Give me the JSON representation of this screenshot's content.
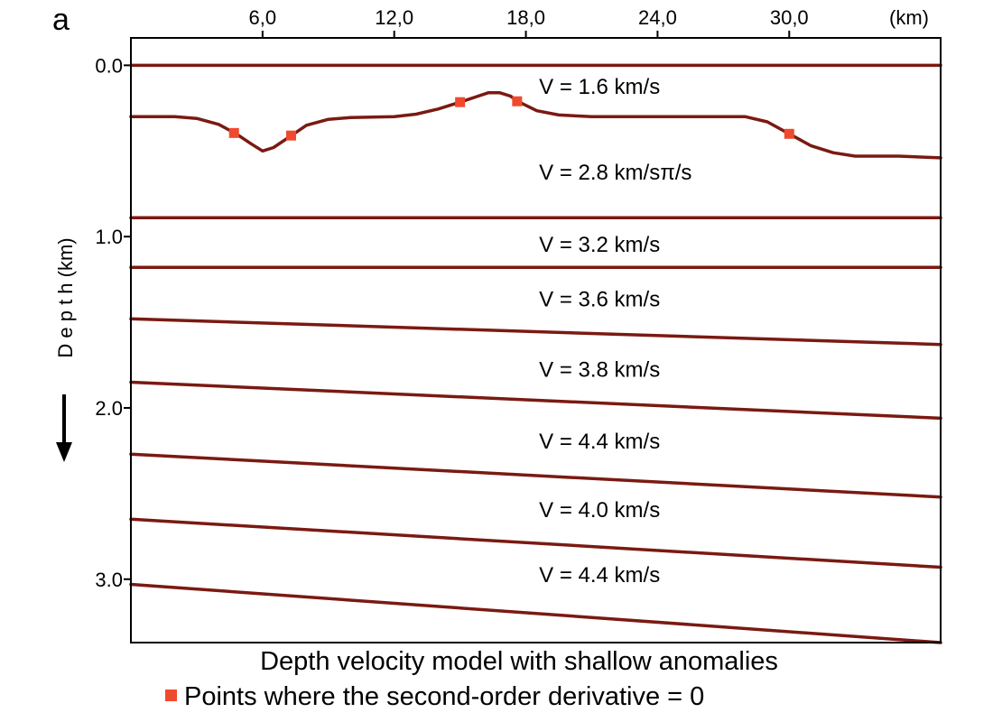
{
  "panel_label": "a",
  "x_axis": {
    "ticks": [
      6.0,
      12.0,
      18.0,
      24.0,
      30.0
    ],
    "tick_labels": [
      "6,0",
      "12,0",
      "18,0",
      "24,0",
      "30,0"
    ],
    "unit_label": "(km)",
    "range": [
      0,
      36.9
    ]
  },
  "y_axis": {
    "ticks": [
      0.0,
      1.0,
      2.0,
      3.0
    ],
    "tick_labels": [
      "0.0",
      "1.0",
      "2.0",
      "3.0"
    ],
    "label": "D e p t h (km)",
    "range": [
      -0.16,
      3.37
    ],
    "direction_arrow": "down"
  },
  "colors": {
    "interface_line": "#7a1a12",
    "marker": "#f04a2e",
    "frame": "#000000",
    "text": "#000000"
  },
  "layers": [
    {
      "label": "V = 1.6 km/s",
      "x": 18.6,
      "depth": 0.12
    },
    {
      "label": "V = 2.8 km/sπ/s",
      "x": 18.6,
      "depth": 0.62
    },
    {
      "label": "V = 3.2 km/s",
      "x": 18.6,
      "depth": 1.04
    },
    {
      "label": "V = 3.6 km/s",
      "x": 18.6,
      "depth": 1.36
    },
    {
      "label": "V = 3.8 km/s",
      "x": 18.6,
      "depth": 1.77
    },
    {
      "label": "V = 4.4 km/s",
      "x": 18.6,
      "depth": 2.19
    },
    {
      "label": "V = 4.0 km/s",
      "x": 18.6,
      "depth": 2.59
    },
    {
      "label": "V = 4.4 km/s",
      "x": 18.6,
      "depth": 2.97
    }
  ],
  "interfaces": [
    {
      "name": "surface",
      "points": [
        [
          0,
          0.0
        ],
        [
          36.9,
          0.0
        ]
      ]
    },
    {
      "name": "anomaly-interface",
      "points": [
        [
          0.0,
          0.3
        ],
        [
          2.0,
          0.3
        ],
        [
          3.0,
          0.31
        ],
        [
          4.0,
          0.345
        ],
        [
          4.8,
          0.4
        ],
        [
          5.5,
          0.46
        ],
        [
          6.0,
          0.5
        ],
        [
          6.5,
          0.48
        ],
        [
          7.2,
          0.42
        ],
        [
          8.0,
          0.35
        ],
        [
          9.0,
          0.315
        ],
        [
          10.0,
          0.305
        ],
        [
          12.0,
          0.3
        ],
        [
          13.0,
          0.285
        ],
        [
          14.0,
          0.255
        ],
        [
          15.0,
          0.215
        ],
        [
          15.7,
          0.185
        ],
        [
          16.3,
          0.16
        ],
        [
          16.8,
          0.16
        ],
        [
          17.3,
          0.18
        ],
        [
          17.7,
          0.215
        ],
        [
          18.5,
          0.265
        ],
        [
          19.5,
          0.29
        ],
        [
          21.0,
          0.3
        ],
        [
          24.0,
          0.3
        ],
        [
          28.0,
          0.3
        ],
        [
          29.0,
          0.33
        ],
        [
          30.0,
          0.4
        ],
        [
          31.0,
          0.47
        ],
        [
          32.0,
          0.51
        ],
        [
          33.0,
          0.53
        ],
        [
          35.0,
          0.53
        ],
        [
          36.9,
          0.54
        ]
      ]
    },
    {
      "name": "interface-3",
      "points": [
        [
          0,
          0.89
        ],
        [
          36.9,
          0.89
        ]
      ]
    },
    {
      "name": "interface-4",
      "points": [
        [
          0,
          1.18
        ],
        [
          36.9,
          1.18
        ]
      ]
    },
    {
      "name": "interface-5",
      "points": [
        [
          0,
          1.48
        ],
        [
          36.9,
          1.63
        ]
      ]
    },
    {
      "name": "interface-6",
      "points": [
        [
          0,
          1.85
        ],
        [
          36.9,
          2.06
        ]
      ]
    },
    {
      "name": "interface-7",
      "points": [
        [
          0,
          2.27
        ],
        [
          36.9,
          2.52
        ]
      ]
    },
    {
      "name": "interface-8",
      "points": [
        [
          0,
          2.65
        ],
        [
          36.9,
          2.93
        ]
      ]
    },
    {
      "name": "interface-9",
      "points": [
        [
          0,
          3.03
        ],
        [
          36.9,
          3.37
        ]
      ]
    }
  ],
  "inflection_points": [
    [
      4.7,
      0.395
    ],
    [
      7.3,
      0.41
    ],
    [
      15.0,
      0.215
    ],
    [
      17.6,
      0.21
    ],
    [
      30.0,
      0.4
    ]
  ],
  "caption": {
    "title": "Depth velocity model with shallow anomalies",
    "legend_label": "Points where the second-order derivative = 0"
  }
}
